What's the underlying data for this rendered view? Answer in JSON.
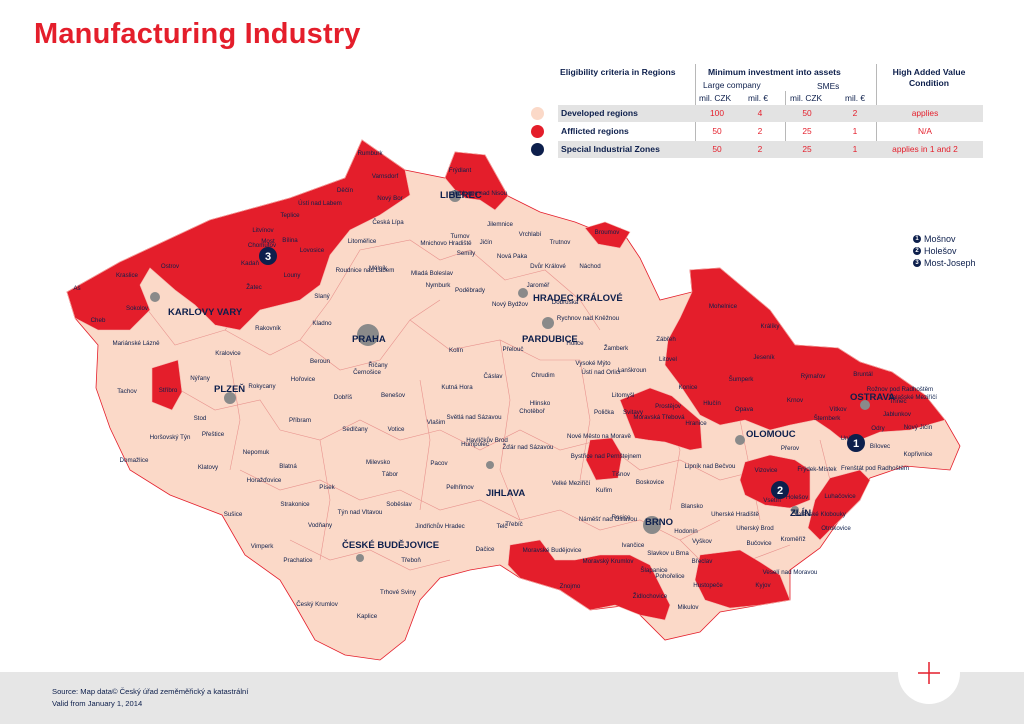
{
  "title": "Manufacturing Industry",
  "criteria_table": {
    "header_regions": "Eligibility criteria in Regions",
    "header_min_investment": "Minimum investment into assets",
    "header_high_added": "High Added Value Condition",
    "header_large_company": "Large company",
    "header_smes": "SMEs",
    "col_mil_czk_1": "mil. CZK",
    "col_mil_eur_1": "mil. €",
    "col_mil_czk_2": "mil. CZK",
    "col_mil_eur_2": "mil. €",
    "rows": [
      {
        "label": "Developed regions",
        "color": "#fbd9c8",
        "large_czk": "100",
        "large_eur": "4",
        "sme_czk": "50",
        "sme_eur": "2",
        "high_added": "applies"
      },
      {
        "label": "Afflicted regions",
        "color": "#e41e2b",
        "large_czk": "50",
        "large_eur": "2",
        "sme_czk": "25",
        "sme_eur": "1",
        "high_added": "N/A"
      },
      {
        "label": "Special Industrial Zones",
        "color": "#0d1f4c",
        "large_czk": "50",
        "large_eur": "2",
        "sme_czk": "25",
        "sme_eur": "1",
        "high_added": "applies in 1 and 2"
      }
    ]
  },
  "zones_legend": [
    {
      "num": "1",
      "name": "Mošnov"
    },
    {
      "num": "2",
      "name": "Holešov"
    },
    {
      "num": "3",
      "name": "Most-Joseph"
    }
  ],
  "map": {
    "developed_color": "#fbd9c8",
    "afflicted_color": "#e41e2b",
    "city_color": "#8a8a8a",
    "marker_color": "#0d1f4c",
    "markers": [
      "1",
      "2",
      "3"
    ],
    "major_cities": [
      "LIBEREC",
      "KARLOVY VARY",
      "PRAHA",
      "HRADEC KRÁLOVÉ",
      "PARDUBICE",
      "PLZEŇ",
      "OLOMOUC",
      "OSTRAVA",
      "JIHLAVA",
      "BRNO",
      "ZLÍN",
      "ČESKÉ BUDĚJOVICE"
    ],
    "region_labels": [
      "Rumburk",
      "Frýdlant",
      "Děčín",
      "Varnsdorf",
      "Nový Bor",
      "Jablonec nad Nisou",
      "Ústí nad Labem",
      "Teplice",
      "Litvínov",
      "Chomutov",
      "Most",
      "Bílina",
      "Kadaň",
      "Žatec",
      "Louny",
      "Lovosice",
      "Litoměřice",
      "Česká Lípa",
      "Turnov",
      "Semily",
      "Jilemnice",
      "Vrchlabí",
      "Trutnov",
      "Broumov",
      "Náchod",
      "Dvůr Králové",
      "Jaroměř",
      "Nová Paka",
      "Jičín",
      "Mnichovo Hradiště",
      "Mladá Boleslav",
      "Mělník",
      "Roudnice nad Labem",
      "Slaný",
      "Kladno",
      "Nymburk",
      "Poděbrady",
      "Kolín",
      "Kutná Hora",
      "Čáslav",
      "Přelouč",
      "Chrudim",
      "Holice",
      "Vysoké Mýto",
      "Ústí nad Orlicí",
      "Lanškroun",
      "Žamberk",
      "Rychnov nad Kněžnou",
      "Dobruška",
      "Nový Bydžov",
      "Ostrov",
      "Kraslice",
      "Sokolov",
      "Cheb",
      "Aš",
      "Mariánské Lázně",
      "Tachov",
      "Stříbro",
      "Nýřany",
      "Rokycany",
      "Kralovice",
      "Rakovník",
      "Beroun",
      "Hořovice",
      "Příbram",
      "Dobříš",
      "Černošice",
      "Říčany",
      "Benešov",
      "Vlašim",
      "Sedlčany",
      "Votice",
      "Stod",
      "Přeštice",
      "Horšovský Týn",
      "Domažlice",
      "Klatovy",
      "Nepomuk",
      "Blatná",
      "Horažďovice",
      "Strakonice",
      "Sušice",
      "Vimperk",
      "Prachatice",
      "Písek",
      "Milevsko",
      "Tábor",
      "Týn nad Vltavou",
      "Soběslav",
      "Vodňany",
      "Český Krumlov",
      "Kaplice",
      "Trhové Sviny",
      "Třeboň",
      "Jindřichův Hradec",
      "Dačice",
      "Pelhřimov",
      "Pacov",
      "Humpolec",
      "Havlíčkův Brod",
      "Světlá nad Sázavou",
      "Chotěboř",
      "Žďár nad Sázavou",
      "Hlinsko",
      "Polička",
      "Svitavy",
      "Moravská Třebová",
      "Litomyšl",
      "Bystřice nad Pernštejnem",
      "Nové Město na Moravě",
      "Velké Meziříčí",
      "Třebíč",
      "Telč",
      "Moravské Budějovice",
      "Znojmo",
      "Moravský Krumlov",
      "Náměšť nad Oslavou",
      "Rosice",
      "Ivančice",
      "Kuřim",
      "Tišnov",
      "Boskovice",
      "Blansko",
      "Vyškov",
      "Slavkov u Brna",
      "Šlapanice",
      "Židlochovice",
      "Pohořelice",
      "Mikulov",
      "Hustopeče",
      "Břeclav",
      "Hodonín",
      "Kyjov",
      "Bučovice",
      "Veselí nad Moravou",
      "Uherské Hradiště",
      "Uherský Brod",
      "Kroměříž",
      "Otrokovice",
      "Luhačovice",
      "Valašské Klobouky",
      "Vsetín",
      "Vizovice",
      "Holešov",
      "Přerov",
      "Lipník nad Bečvou",
      "Hranice",
      "Prostějov",
      "Konice",
      "Litovel",
      "Mohelnice",
      "Zábřeh",
      "Šumperk",
      "Jeseník",
      "Králíky",
      "Rýmařov",
      "Bruntál",
      "Krnov",
      "Opava",
      "Hlučín",
      "Vítkov",
      "Šternberk",
      "Uničov",
      "Bílovec",
      "Odry",
      "Nový Jičín",
      "Kopřivnice",
      "Frenštát pod Radhoštěm",
      "Frýdek-Místek",
      "Třinec",
      "Jablunkov",
      "Rožnov pod Radhoštěm",
      "Valašské Meziříčí",
      "Karviná",
      "Havířov",
      "Orlová",
      "Bohumín"
    ]
  },
  "footer": {
    "source": "Source: Map data© Český úřad zeměměřický a katastrální",
    "valid": "Valid from January 1, 2014"
  }
}
